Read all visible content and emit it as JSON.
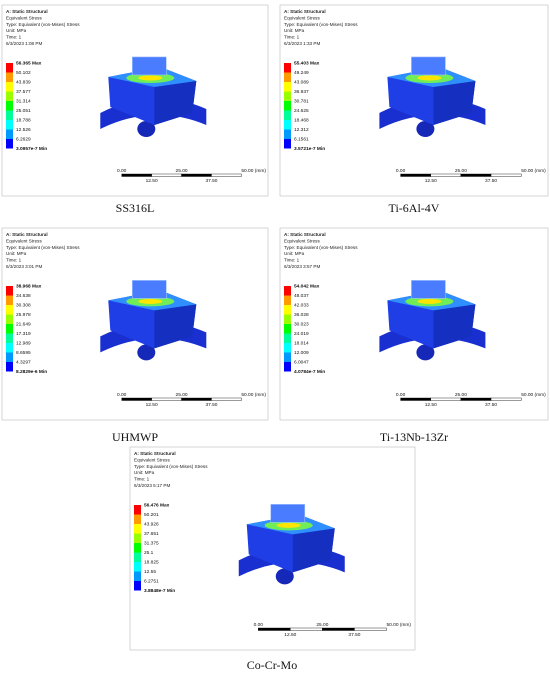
{
  "panels": [
    {
      "caption": "SS316L",
      "header": [
        "A: Static Structural",
        "Equivalent Stress",
        "Type: Equivalent (von-Mises) Stress",
        "Unit: MPa",
        "Time: 1",
        "6/3/2023 1:08 PM"
      ],
      "legend": [
        "56.365 Max",
        "50.102",
        "43.839",
        "37.577",
        "31.314",
        "25.051",
        "18.788",
        "12.526",
        "6.2629",
        "3.0957e-7 Min"
      ],
      "scale_top": [
        "0.00",
        "25.00",
        "50.00 (mm)"
      ],
      "scale_bottom": [
        "12.50",
        "37.50"
      ]
    },
    {
      "caption": "Ti-6Al-4V",
      "header": [
        "A: Static Structural",
        "Equivalent Stress",
        "Type: Equivalent (von-Mises) Stress",
        "Unit: MPa",
        "Time: 1",
        "6/3/2023 1:33 PM"
      ],
      "legend": [
        "55.403 Max",
        "49.249",
        "43.089",
        "36.937",
        "30.781",
        "24.625",
        "18.468",
        "12.312",
        "6.1561",
        "3.5721e-7 Min"
      ],
      "scale_top": [
        "0.00",
        "25.00",
        "50.00 (mm)"
      ],
      "scale_bottom": [
        "12.50",
        "37.50"
      ]
    },
    {
      "caption": "UHMWP",
      "header": [
        "A: Static Structural",
        "Equivalent Stress",
        "Type: Equivalent (von-Mises) Stress",
        "Unit: MPa",
        "Time: 1",
        "6/3/2023 3:01 PM"
      ],
      "legend": [
        "38.968 Max",
        "34.638",
        "30.308",
        "25.978",
        "21.649",
        "17.319",
        "12.989",
        "8.6595",
        "4.3297",
        "8.2829e-6 Min"
      ],
      "scale_top": [
        "0.00",
        "25.00",
        "50.00 (mm)"
      ],
      "scale_bottom": [
        "12.50",
        "37.50"
      ]
    },
    {
      "caption": "Ti-13Nb-13Zr",
      "header": [
        "A: Static Structural",
        "Equivalent Stress",
        "Type: Equivalent (von-Mises) Stress",
        "Unit: MPa",
        "Time: 1",
        "6/3/2023 3:57 PM"
      ],
      "legend": [
        "54.042 Max",
        "48.037",
        "42.033",
        "36.028",
        "30.023",
        "24.019",
        "18.014",
        "12.009",
        "6.0047",
        "4.0784e-7 Min"
      ],
      "scale_top": [
        "0.00",
        "25.00",
        "50.00 (mm)"
      ],
      "scale_bottom": [
        "12.50",
        "37.50"
      ]
    },
    {
      "caption": "Co-Cr-Mo",
      "header": [
        "A: Static Structural",
        "Equivalent Stress",
        "Type: Equivalent (von-Mises) Stress",
        "Unit: MPa",
        "Time: 1",
        "6/3/2023 5:17 PM"
      ],
      "legend": [
        "56.476 Max",
        "50.201",
        "43.926",
        "37.651",
        "31.375",
        "25.1",
        "18.825",
        "12.55",
        "6.2751",
        "3.8848e-7 Min"
      ],
      "scale_top": [
        "0.00",
        "25.00",
        "50.00 (mm)"
      ],
      "scale_bottom": [
        "12.50",
        "37.50"
      ]
    }
  ]
}
